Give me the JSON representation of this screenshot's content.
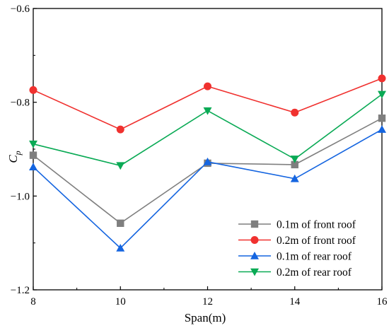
{
  "chart_data": {
    "type": "line",
    "x": [
      8,
      10,
      12,
      14,
      16
    ],
    "xlabel": "Span(m)",
    "ylabel": "C",
    "ylabel_subscript": "p",
    "xlim": [
      8,
      16
    ],
    "ylim": [
      -1.2,
      -0.6
    ],
    "xticks": [
      8,
      10,
      12,
      14,
      16
    ],
    "yticks": [
      -1.2,
      -1.0,
      -0.8,
      -0.6
    ],
    "xtick_labels": [
      "8",
      "10",
      "12",
      "14",
      "16"
    ],
    "ytick_labels": [
      "−1.2",
      "−1.0",
      "−0.8",
      "−0.6"
    ],
    "grid": false,
    "legend_position": "bottom-right",
    "series": [
      {
        "name": "0.1m of front roof",
        "marker": "square",
        "color": "#7f7f7f",
        "values": [
          -0.913,
          -1.058,
          -0.93,
          -0.933,
          -0.834
        ]
      },
      {
        "name": "0.2m of front roof",
        "marker": "circle",
        "color": "#f0312f",
        "values": [
          -0.774,
          -0.858,
          -0.766,
          -0.822,
          -0.749
        ]
      },
      {
        "name": "0.1m of rear roof",
        "marker": "triangle-up",
        "color": "#1565e0",
        "values": [
          -0.938,
          -1.111,
          -0.927,
          -0.963,
          -0.858
        ]
      },
      {
        "name": "0.2m of rear roof",
        "marker": "triangle-down",
        "color": "#0aaa55",
        "values": [
          -0.889,
          -0.935,
          -0.818,
          -0.921,
          -0.783
        ]
      }
    ]
  }
}
